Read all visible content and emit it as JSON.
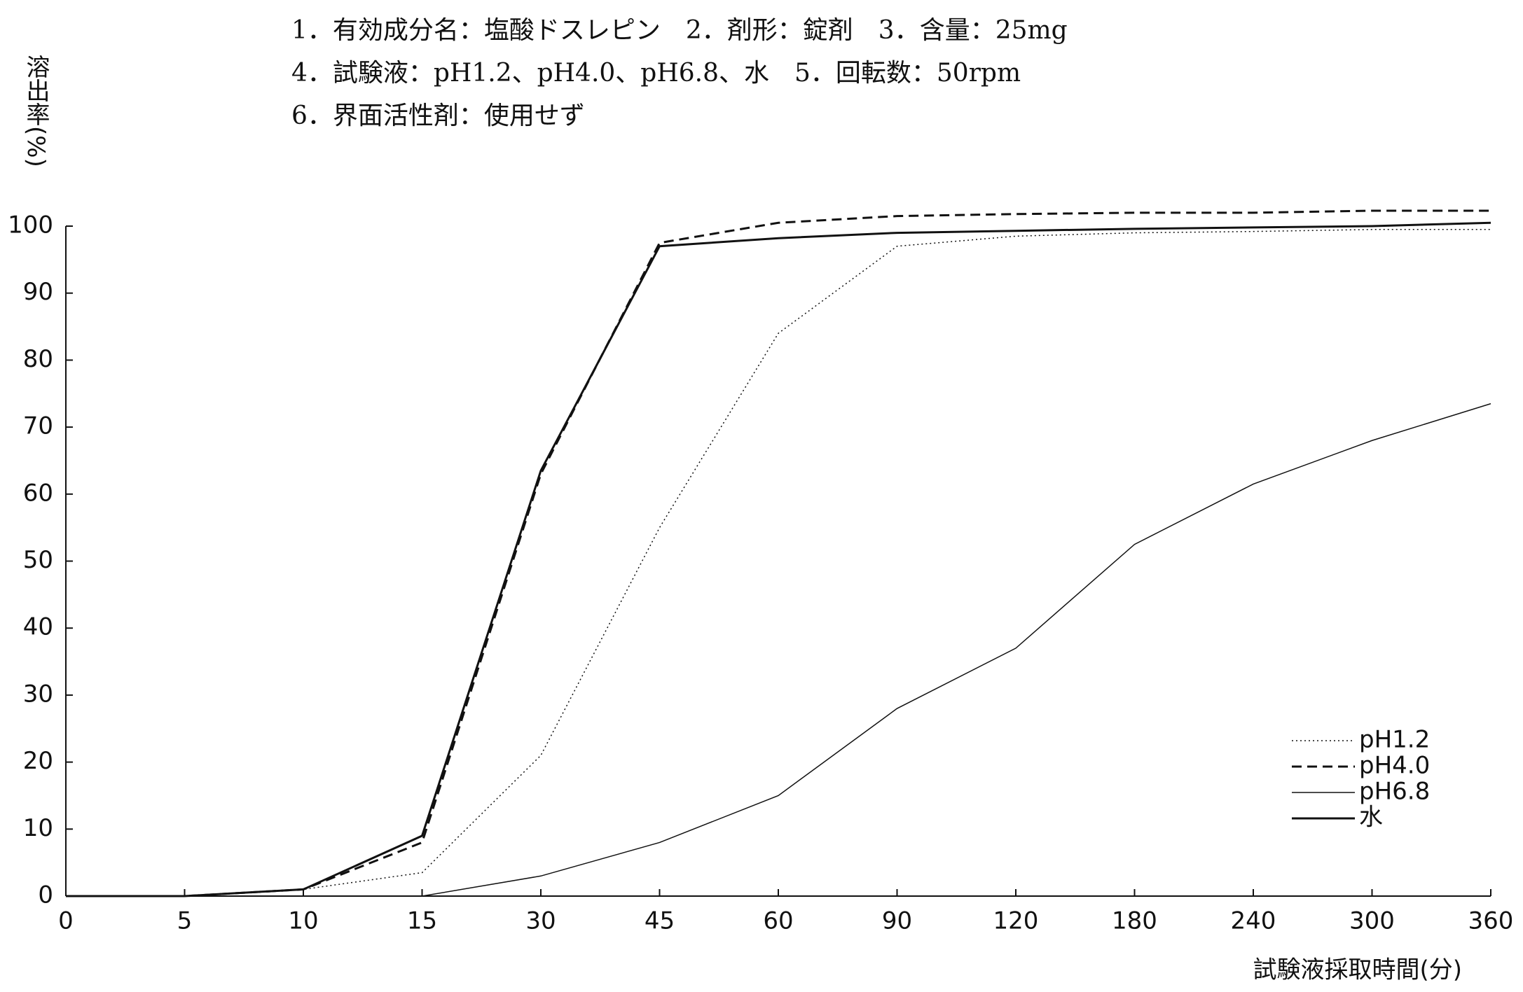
{
  "chart_data": {
    "type": "line",
    "title_lines": [
      "1．有効成分名：塩酸ドスレピン　2．剤形：錠剤　3．含量：25mg",
      "4．試験液：pH1.2、pH4.0、pH6.8、水　5．回転数：50rpm",
      "6．界面活性剤：使用せず"
    ],
    "ylabel": "溶出率(%)",
    "xlabel": "試験液採取時間(分)",
    "categories": [
      "0",
      "5",
      "10",
      "15",
      "30",
      "45",
      "60",
      "90",
      "120",
      "180",
      "240",
      "300",
      "360"
    ],
    "series": [
      {
        "name": "pH1.2",
        "color": "#111111",
        "dash": "dotted",
        "width": 1.5,
        "values": [
          0,
          0,
          1,
          3.5,
          21,
          55,
          84,
          97,
          98.5,
          99,
          99.2,
          99.5,
          99.5
        ]
      },
      {
        "name": "pH4.0",
        "color": "#111111",
        "dash": "dashed",
        "width": 3,
        "values": [
          0,
          0,
          1,
          8,
          63,
          97.5,
          100.5,
          101.5,
          101.8,
          102,
          102,
          102.3,
          102.3
        ]
      },
      {
        "name": "pH6.8",
        "color": "#111111",
        "dash": "solid",
        "width": 1.5,
        "values": [
          null,
          null,
          null,
          0,
          3,
          8,
          15,
          28,
          37,
          52.5,
          61.5,
          68,
          73.5
        ]
      },
      {
        "name": "水",
        "color": "#111111",
        "dash": "solid",
        "width": 3,
        "values": [
          0,
          0,
          1,
          9,
          63.5,
          97,
          98.2,
          99,
          99.3,
          99.6,
          99.8,
          100,
          100.5
        ]
      }
    ],
    "ylim": [
      0,
      100
    ],
    "yticks": [
      0,
      10,
      20,
      30,
      40,
      50,
      60,
      70,
      80,
      90,
      100
    ],
    "grid": false,
    "legend": "lower right"
  }
}
